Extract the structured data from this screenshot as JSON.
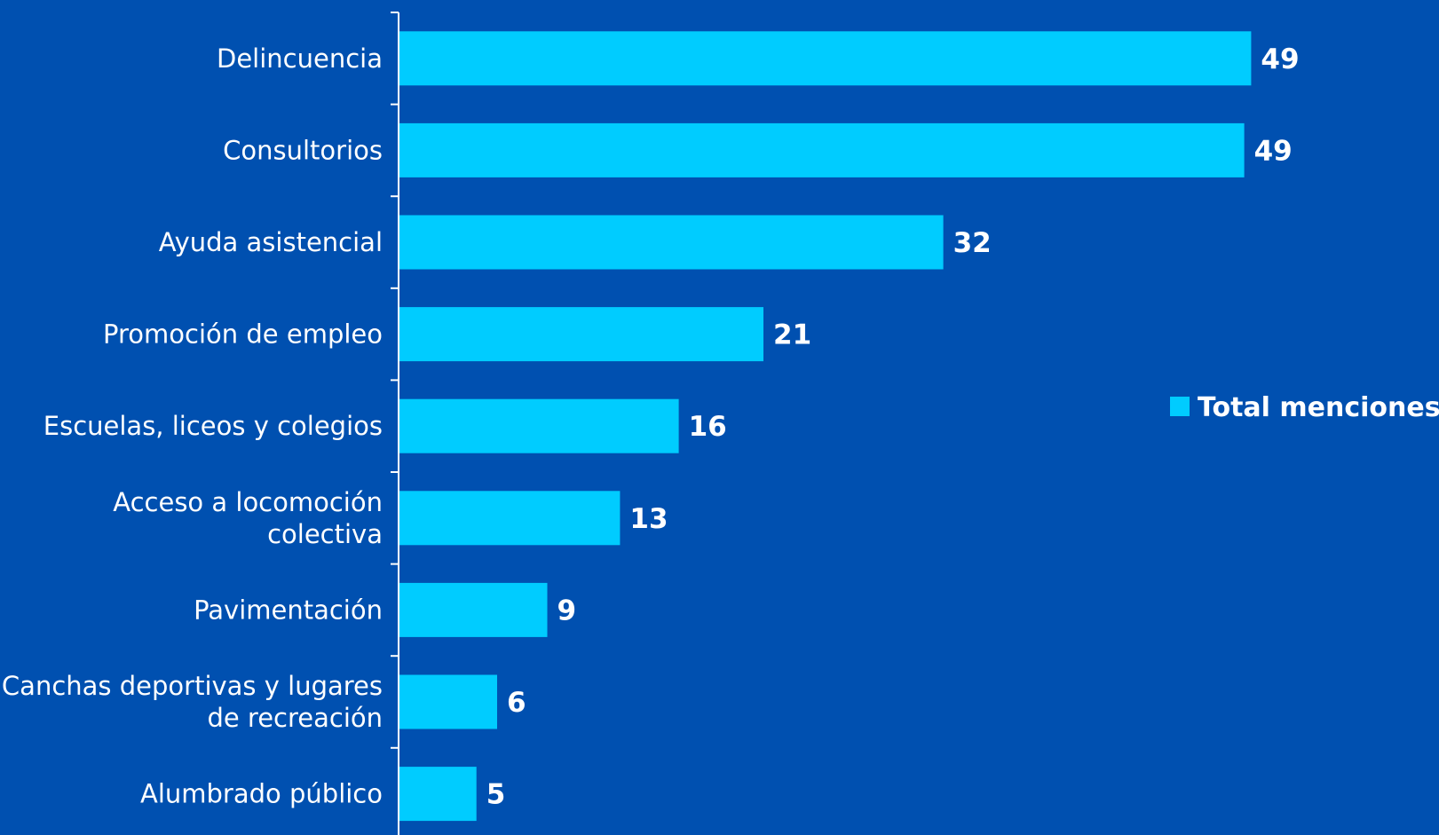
{
  "colors": {
    "background": "#0050b0",
    "bar": "#00ccff",
    "axis": "#ffffff",
    "text": "#ffffff"
  },
  "chart_data": {
    "type": "bar",
    "orientation": "horizontal",
    "categories": [
      [
        "Delincuencia"
      ],
      [
        "Consultorios"
      ],
      [
        "Ayuda asistencial"
      ],
      [
        "Promoción de empleo"
      ],
      [
        "Escuelas, liceos y colegios"
      ],
      [
        "Acceso a locomoción",
        "colectiva"
      ],
      [
        "Pavimentación"
      ],
      [
        "Canchas deportivas y lugares",
        "de recreación"
      ],
      [
        "Alumbrado público"
      ]
    ],
    "values": [
      49.3,
      48.9,
      31.5,
      21.1,
      16.2,
      12.8,
      8.6,
      5.7,
      4.5
    ],
    "data_labels": [
      "49",
      "49",
      "32",
      "21",
      "16",
      "13",
      "9",
      "6",
      "5"
    ],
    "series": [
      {
        "name": "Total menciones",
        "color": "#00ccff"
      }
    ],
    "legend_position": "right",
    "xlim": [
      0,
      52
    ],
    "grid": false
  }
}
